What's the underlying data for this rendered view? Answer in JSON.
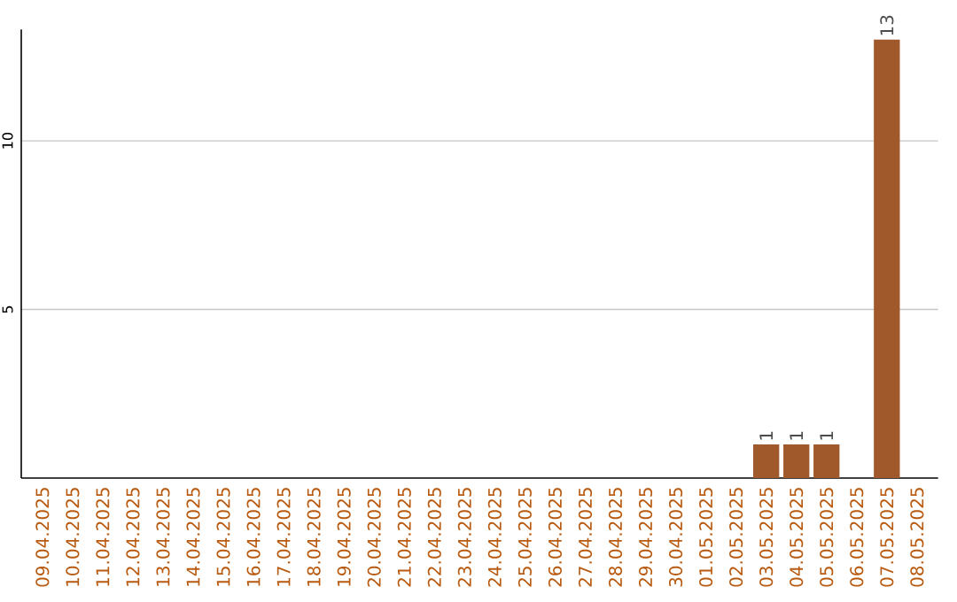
{
  "chart_data": {
    "type": "bar",
    "categories": [
      "09.04.2025",
      "10.04.2025",
      "11.04.2025",
      "12.04.2025",
      "13.04.2025",
      "14.04.2025",
      "15.04.2025",
      "16.04.2025",
      "17.04.2025",
      "18.04.2025",
      "19.04.2025",
      "20.04.2025",
      "21.04.2025",
      "22.04.2025",
      "23.04.2025",
      "24.04.2025",
      "25.04.2025",
      "26.04.2025",
      "27.04.2025",
      "28.04.2025",
      "29.04.2025",
      "30.04.2025",
      "01.05.2025",
      "02.05.2025",
      "03.05.2025",
      "04.05.2025",
      "05.05.2025",
      "06.05.2025",
      "07.05.2025",
      "08.05.2025"
    ],
    "values": [
      0,
      0,
      0,
      0,
      0,
      0,
      0,
      0,
      0,
      0,
      0,
      0,
      0,
      0,
      0,
      0,
      0,
      0,
      0,
      0,
      0,
      0,
      0,
      0,
      1,
      1,
      1,
      0,
      13,
      0
    ],
    "value_labels": [
      null,
      null,
      null,
      null,
      null,
      null,
      null,
      null,
      null,
      null,
      null,
      null,
      null,
      null,
      null,
      null,
      null,
      null,
      null,
      null,
      null,
      null,
      null,
      null,
      "1",
      "1",
      "1",
      null,
      "13",
      null
    ],
    "color": "#a0592b",
    "ylim": [
      0,
      13.3
    ],
    "yticks": [
      5,
      10
    ],
    "grid": "y"
  }
}
